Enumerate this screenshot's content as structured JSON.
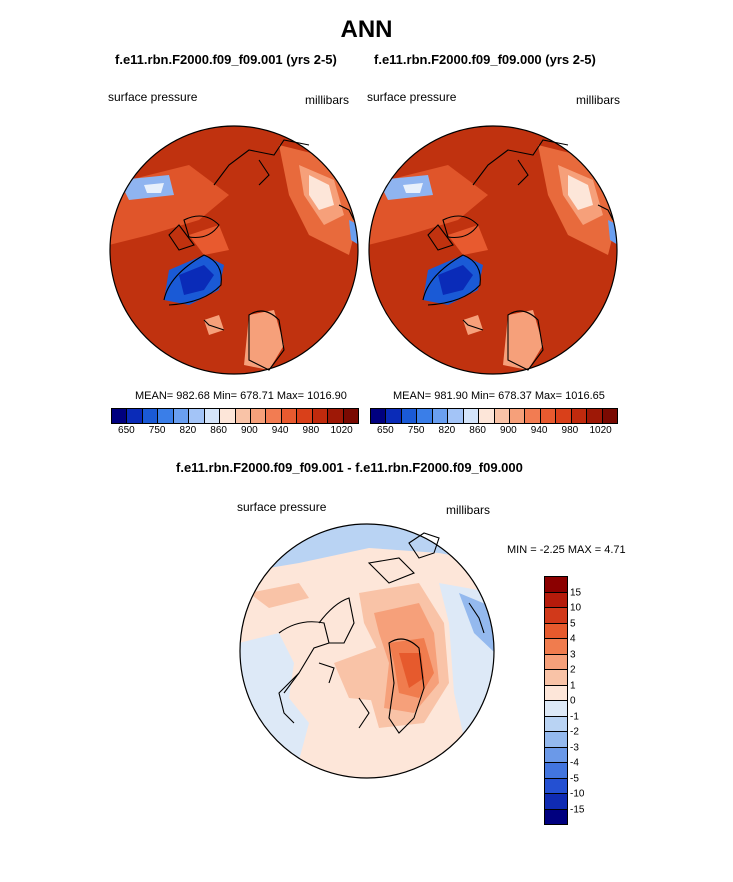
{
  "main_title": "ANN",
  "panels": {
    "left": {
      "title": "f.e11.rbn.F2000.f09_f09.001 (yrs 2-5)",
      "left_label": "surface pressure",
      "right_label": "millibars",
      "stats": "MEAN= 982.68  Min= 678.71  Max= 1016.90"
    },
    "right": {
      "title": "f.e11.rbn.F2000.f09_f09.000 (yrs 2-5)",
      "left_label": "surface pressure",
      "right_label": "millibars",
      "stats": "MEAN= 981.90  Min= 678.37  Max= 1016.65"
    },
    "diff": {
      "title": "f.e11.rbn.F2000.f09_f09.001 - f.e11.rbn.F2000.f09_f09.000",
      "left_label": "surface pressure",
      "right_label": "millibars",
      "stats": "MIN =  -2.25 MAX =   4.71"
    }
  },
  "colorbar_main": {
    "colors": [
      "#00007f",
      "#0a2bb8",
      "#1a5ad6",
      "#3a7ee8",
      "#6a9ff0",
      "#a3c4f7",
      "#d4e4fa",
      "#fde6d9",
      "#f9c3a7",
      "#f6a07a",
      "#f27c52",
      "#e85a2f",
      "#d9401a",
      "#c02a0d",
      "#9e1806",
      "#7a0a02"
    ],
    "labels": [
      "650",
      "750",
      "820",
      "860",
      "900",
      "940",
      "980",
      "1020"
    ]
  },
  "colorbar_diff": {
    "colors": [
      "#8b0000",
      "#b51b0b",
      "#d1391a",
      "#e65a2d",
      "#f07c4e",
      "#f6a07a",
      "#f9c3a7",
      "#fde6d9",
      "#dde9f7",
      "#b9d3f3",
      "#94b9ee",
      "#6b99e8",
      "#4275df",
      "#2450d2",
      "#0f2bb2",
      "#00007f"
    ],
    "labels": [
      "15",
      "10",
      "5",
      "4",
      "3",
      "2",
      "1",
      "0",
      "-1",
      "-2",
      "-3",
      "-4",
      "-5",
      "-10",
      "-15"
    ]
  },
  "chart_data": [
    {
      "type": "heatmap",
      "title": "f.e11.rbn.F2000.f09_f09.001 (yrs 2-5)",
      "variable": "surface pressure",
      "units": "millibars",
      "projection": "polar stereographic (north)",
      "summary": {
        "MEAN": 982.68,
        "Min": 678.71,
        "Max": 1016.9
      },
      "contour_levels": [
        650,
        700,
        750,
        800,
        820,
        840,
        860,
        880,
        900,
        920,
        940,
        960,
        980,
        1000,
        1020
      ]
    },
    {
      "type": "heatmap",
      "title": "f.e11.rbn.F2000.f09_f09.000 (yrs 2-5)",
      "variable": "surface pressure",
      "units": "millibars",
      "projection": "polar stereographic (north)",
      "summary": {
        "MEAN": 981.9,
        "Min": 678.37,
        "Max": 1016.65
      },
      "contour_levels": [
        650,
        700,
        750,
        800,
        820,
        840,
        860,
        880,
        900,
        920,
        940,
        960,
        980,
        1000,
        1020
      ]
    },
    {
      "type": "heatmap",
      "title": "f.e11.rbn.F2000.f09_f09.001 - f.e11.rbn.F2000.f09_f09.000",
      "variable": "surface pressure",
      "units": "millibars",
      "projection": "polar stereographic (north)",
      "summary": {
        "MIN": -2.25,
        "MAX": 4.71
      },
      "contour_levels": [
        -15,
        -10,
        -5,
        -4,
        -3,
        -2,
        -1,
        0,
        1,
        2,
        3,
        4,
        5,
        10,
        15
      ]
    }
  ]
}
